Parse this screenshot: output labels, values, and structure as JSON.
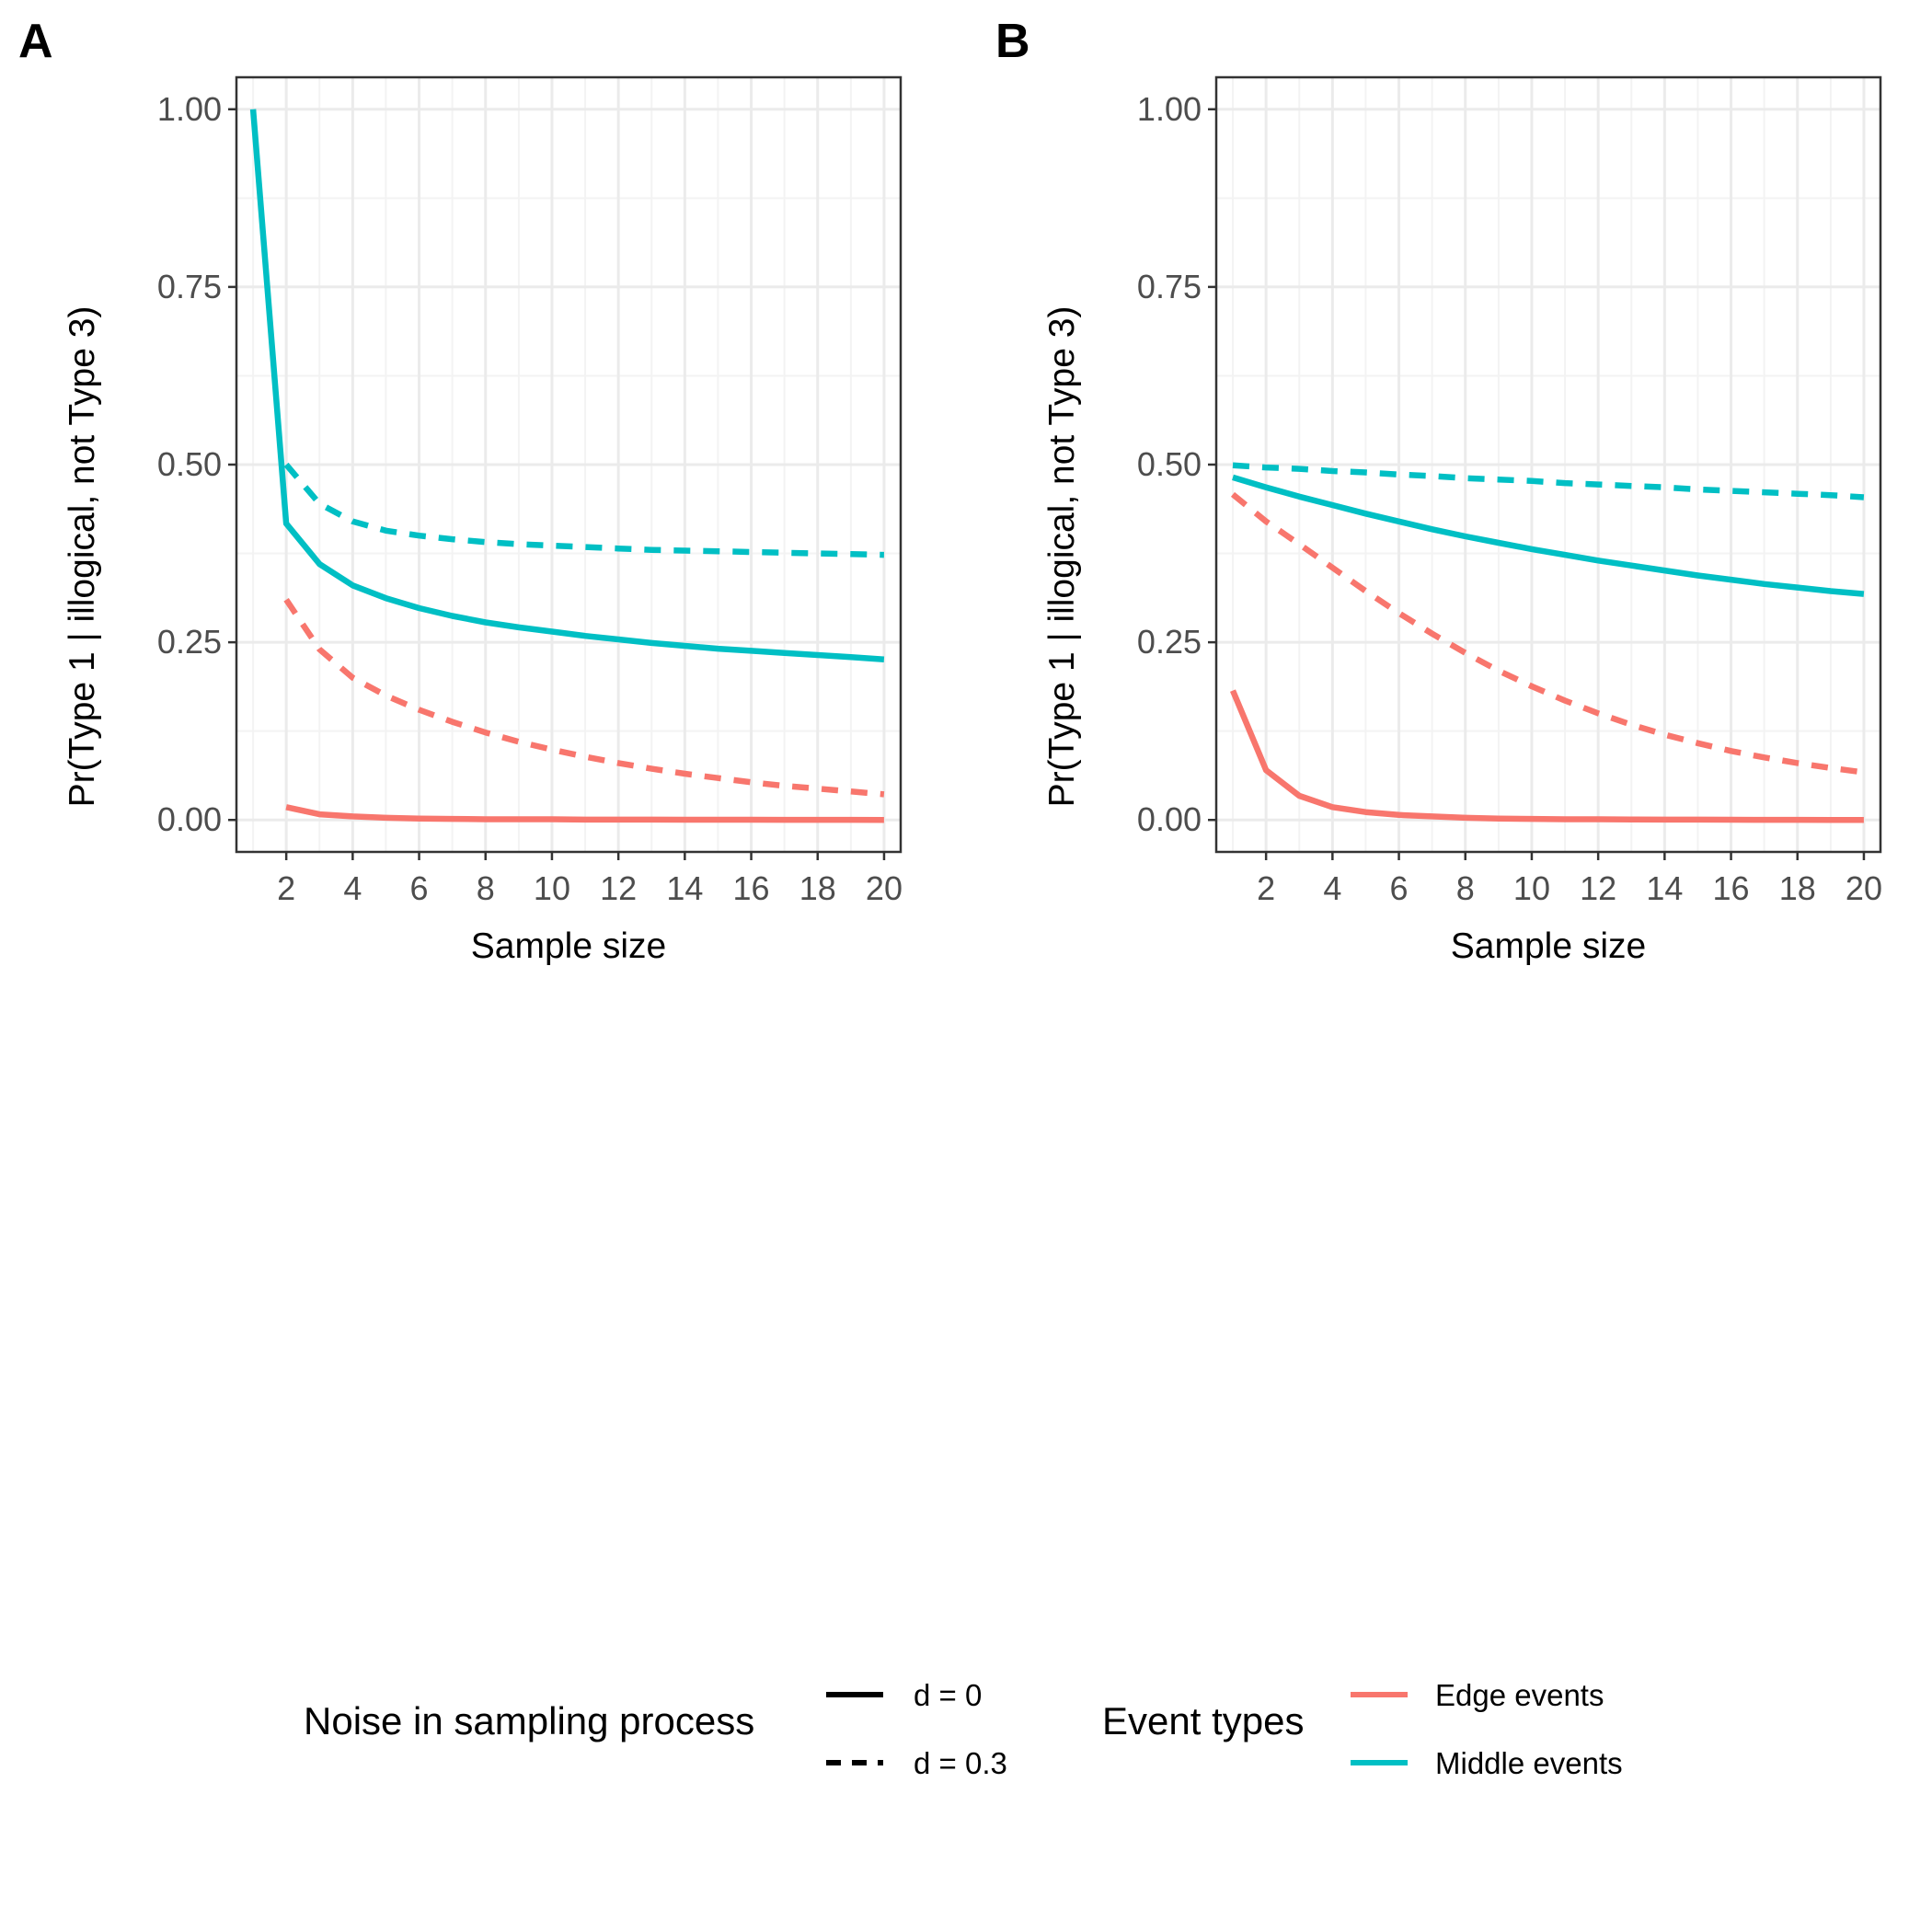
{
  "figure": {
    "panel_labels": [
      "A",
      "B"
    ]
  },
  "chart_data": [
    {
      "type": "line",
      "panel": "A",
      "xlabel": "Sample size",
      "ylabel": "Pr(Type 1 | illogical, not Type 3)",
      "xlim": [
        0.5,
        20.5
      ],
      "ylim": [
        0,
        1
      ],
      "x_ticks": [
        2,
        4,
        6,
        8,
        10,
        12,
        14,
        16,
        18,
        20
      ],
      "y_ticks": [
        0,
        0.25,
        0.5,
        0.75,
        1
      ],
      "y_tick_labels": [
        "0.00",
        "0.25",
        "0.50",
        "0.75",
        "1.00"
      ],
      "grid": true,
      "series": [
        {
          "event": "Edge events",
          "noise": "d = 0",
          "x": [
            2,
            3,
            4,
            5,
            6,
            7,
            8,
            9,
            10,
            11,
            12,
            13,
            14,
            15,
            16,
            17,
            18,
            19,
            20
          ],
          "y": [
            0.018,
            0.008,
            0.005,
            0.003,
            0.002,
            0.0015,
            0.001,
            0.001,
            0.001,
            0.0005,
            0.0005,
            0.0005,
            0.0003,
            0.0003,
            0.0003,
            0.0002,
            0.0002,
            0.0002,
            0.0001
          ]
        },
        {
          "event": "Edge events",
          "noise": "d = 0.3",
          "x": [
            2,
            3,
            4,
            5,
            6,
            7,
            8,
            9,
            10,
            11,
            12,
            13,
            14,
            15,
            16,
            17,
            18,
            19,
            20
          ],
          "y": [
            0.31,
            0.24,
            0.2,
            0.175,
            0.155,
            0.138,
            0.123,
            0.11,
            0.099,
            0.089,
            0.08,
            0.072,
            0.065,
            0.059,
            0.053,
            0.048,
            0.044,
            0.04,
            0.036
          ]
        },
        {
          "event": "Middle events",
          "noise": "d = 0",
          "x": [
            1,
            2,
            3,
            4,
            5,
            6,
            7,
            8,
            9,
            10,
            11,
            12,
            13,
            14,
            15,
            16,
            17,
            18,
            19,
            20
          ],
          "y": [
            1.0,
            0.417,
            0.36,
            0.33,
            0.312,
            0.298,
            0.287,
            0.278,
            0.271,
            0.265,
            0.259,
            0.254,
            0.249,
            0.245,
            0.241,
            0.238,
            0.235,
            0.232,
            0.229,
            0.226
          ]
        },
        {
          "event": "Middle events",
          "noise": "d = 0.3",
          "x": [
            2,
            3,
            4,
            5,
            6,
            7,
            8,
            9,
            10,
            11,
            12,
            13,
            14,
            15,
            16,
            17,
            18,
            19,
            20
          ],
          "y": [
            0.5,
            0.445,
            0.42,
            0.407,
            0.4,
            0.395,
            0.391,
            0.388,
            0.386,
            0.384,
            0.382,
            0.38,
            0.379,
            0.378,
            0.377,
            0.376,
            0.375,
            0.374,
            0.373
          ]
        }
      ]
    },
    {
      "type": "line",
      "panel": "B",
      "xlabel": "Sample size",
      "ylabel": "Pr(Type 1 | illogical, not Type 3)",
      "xlim": [
        0.5,
        20.5
      ],
      "ylim": [
        0,
        1
      ],
      "x_ticks": [
        2,
        4,
        6,
        8,
        10,
        12,
        14,
        16,
        18,
        20
      ],
      "y_ticks": [
        0,
        0.25,
        0.5,
        0.75,
        1
      ],
      "y_tick_labels": [
        "0.00",
        "0.25",
        "0.50",
        "0.75",
        "1.00"
      ],
      "grid": true,
      "series": [
        {
          "event": "Edge events",
          "noise": "d = 0",
          "x": [
            1,
            2,
            3,
            4,
            5,
            6,
            7,
            8,
            9,
            10,
            11,
            12,
            13,
            14,
            15,
            16,
            17,
            18,
            19,
            20
          ],
          "y": [
            0.182,
            0.07,
            0.034,
            0.018,
            0.011,
            0.007,
            0.005,
            0.003,
            0.002,
            0.0015,
            0.001,
            0.001,
            0.0007,
            0.0005,
            0.0004,
            0.0003,
            0.0002,
            0.0002,
            0.0001,
            0.0001
          ]
        },
        {
          "event": "Edge events",
          "noise": "d = 0.3",
          "x": [
            1,
            2,
            3,
            4,
            5,
            6,
            7,
            8,
            9,
            10,
            11,
            12,
            13,
            14,
            15,
            16,
            17,
            18,
            19,
            20
          ],
          "y": [
            0.458,
            0.42,
            0.388,
            0.355,
            0.322,
            0.291,
            0.262,
            0.235,
            0.21,
            0.188,
            0.168,
            0.15,
            0.134,
            0.12,
            0.108,
            0.097,
            0.088,
            0.08,
            0.073,
            0.067
          ]
        },
        {
          "event": "Middle events",
          "noise": "d = 0",
          "x": [
            1,
            2,
            3,
            4,
            5,
            6,
            7,
            8,
            9,
            10,
            11,
            12,
            13,
            14,
            15,
            16,
            17,
            18,
            19,
            20
          ],
          "y": [
            0.482,
            0.468,
            0.455,
            0.443,
            0.431,
            0.42,
            0.409,
            0.399,
            0.39,
            0.381,
            0.373,
            0.365,
            0.358,
            0.351,
            0.344,
            0.338,
            0.332,
            0.327,
            0.322,
            0.318
          ]
        },
        {
          "event": "Middle events",
          "noise": "d = 0.3",
          "x": [
            1,
            2,
            3,
            4,
            5,
            6,
            7,
            8,
            9,
            10,
            11,
            12,
            13,
            14,
            15,
            16,
            17,
            18,
            19,
            20
          ],
          "y": [
            0.499,
            0.496,
            0.494,
            0.491,
            0.489,
            0.486,
            0.484,
            0.481,
            0.479,
            0.477,
            0.474,
            0.472,
            0.47,
            0.468,
            0.465,
            0.463,
            0.461,
            0.459,
            0.457,
            0.454
          ]
        }
      ]
    }
  ],
  "legend": {
    "noise": {
      "title": "Noise in sampling process",
      "items": [
        {
          "label": "d = 0",
          "dash": "solid"
        },
        {
          "label": "d = 0.3",
          "dash": "dashed"
        }
      ]
    },
    "events": {
      "title": "Event types",
      "items": [
        {
          "label": "Edge events",
          "color": "#F8766D"
        },
        {
          "label": "Middle events",
          "color": "#00BFC4"
        }
      ]
    },
    "placement": "bottom"
  },
  "colors": {
    "Edge events": "#F8766D",
    "Middle events": "#00BFC4",
    "grid_major": "#EBEBEB",
    "grid_minor": "#F3F3F3",
    "panel_border": "#333333"
  }
}
